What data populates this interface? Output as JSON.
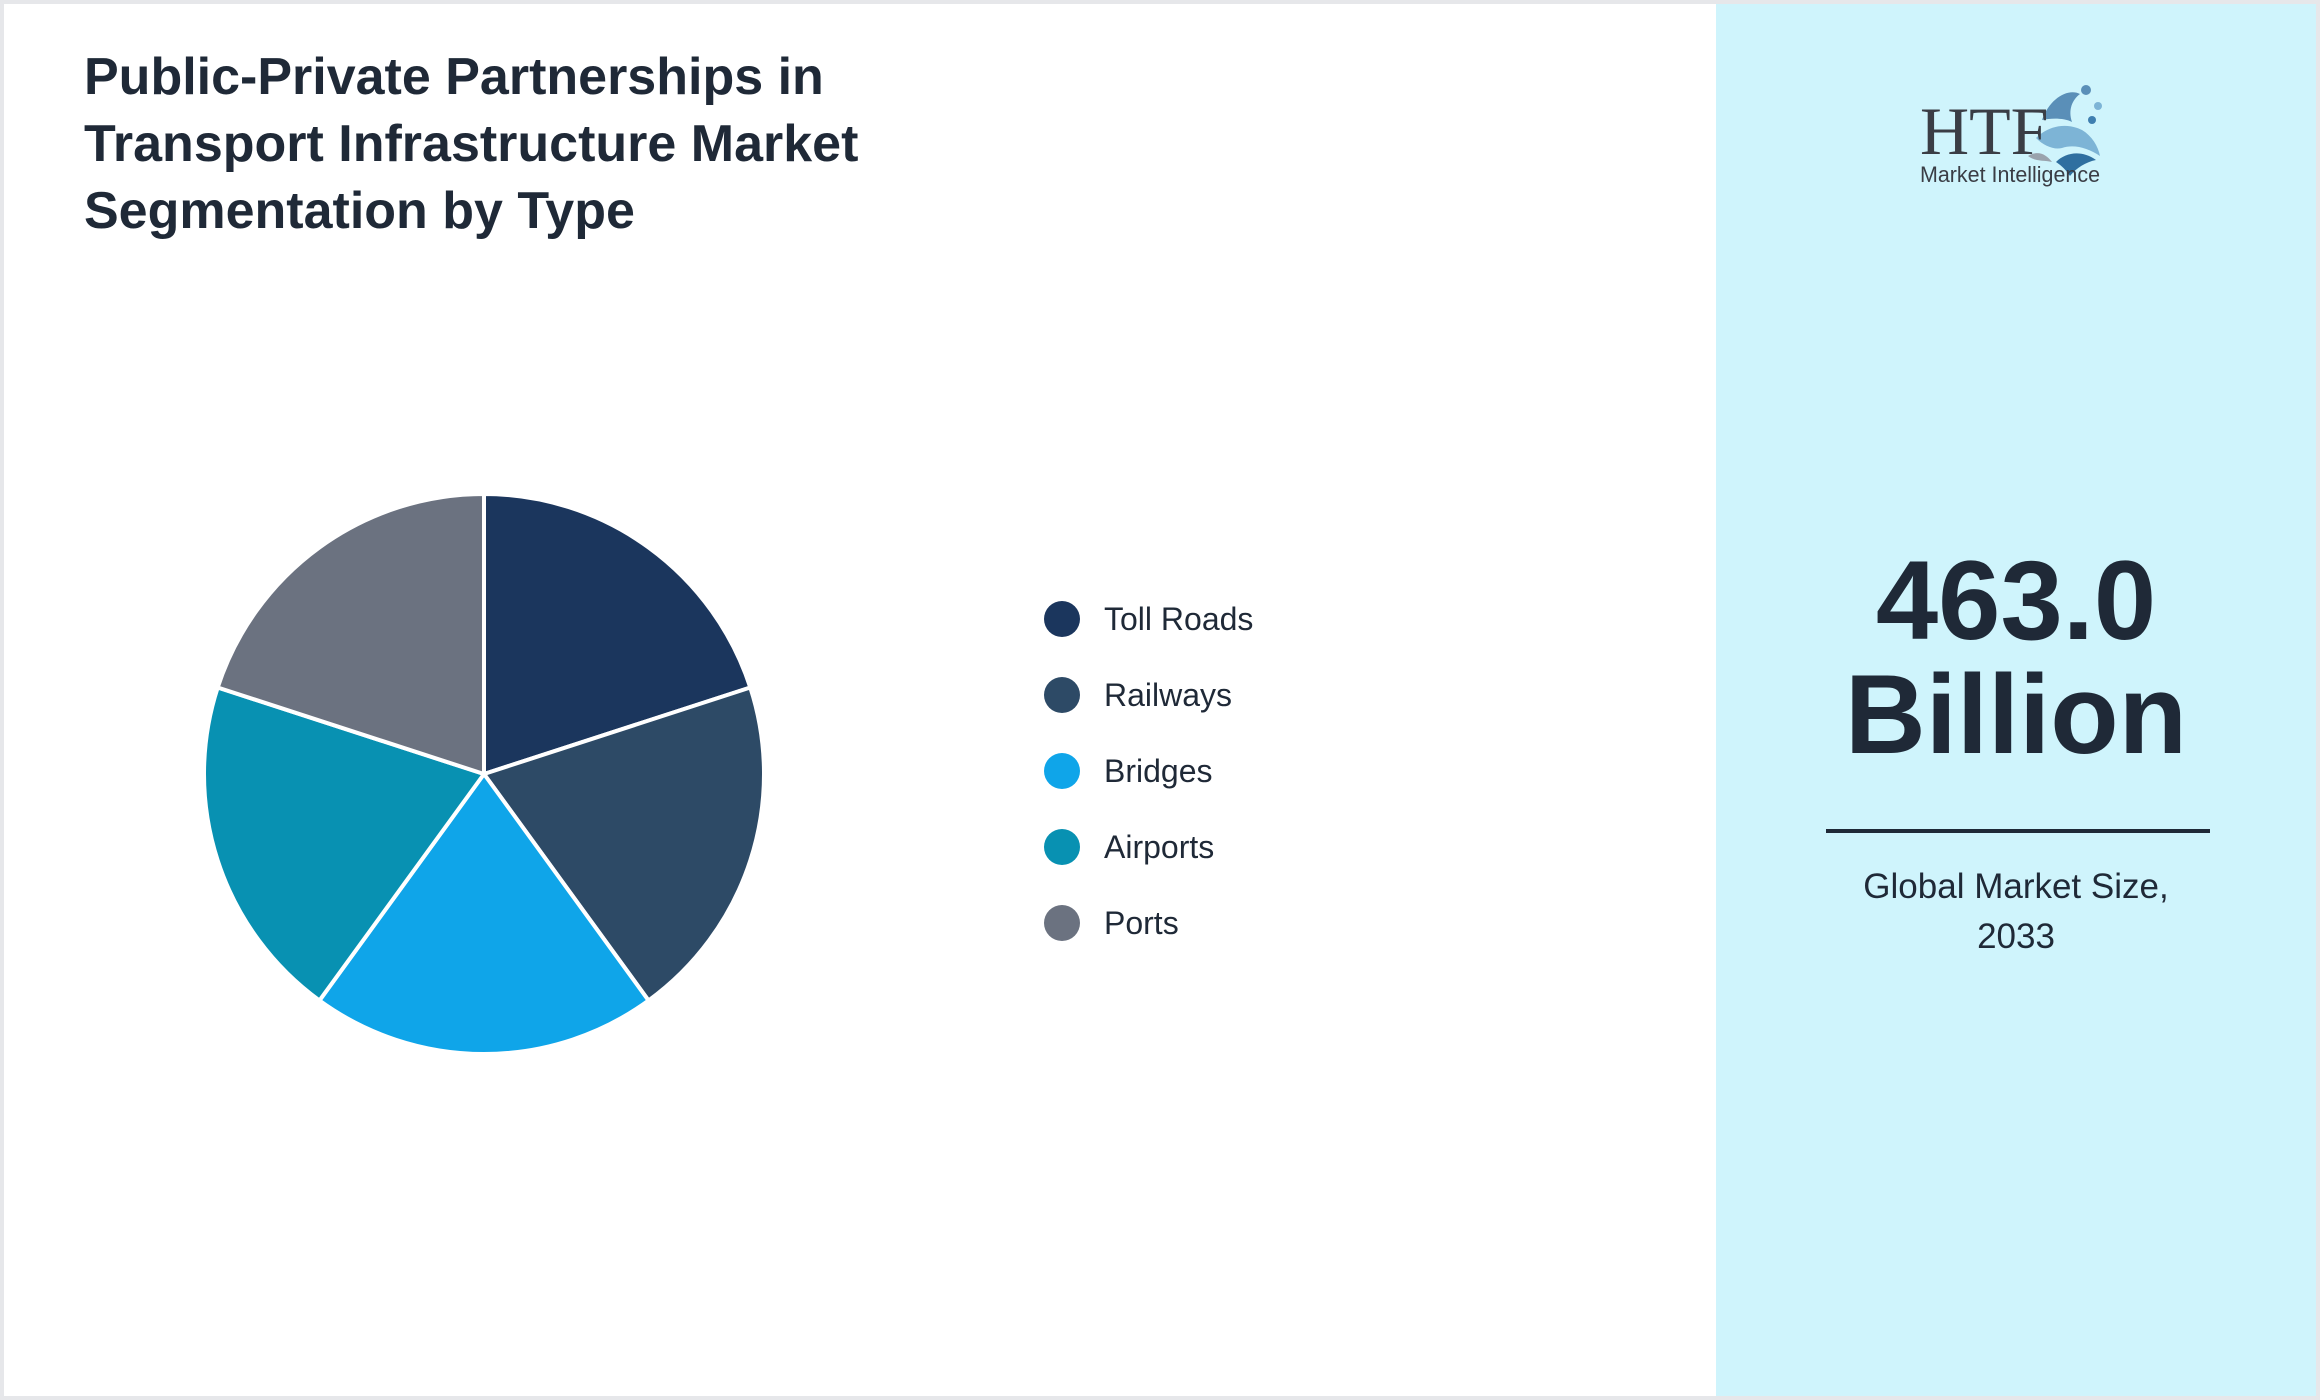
{
  "chart_data": {
    "type": "pie",
    "title": "Public-Private Partnerships in Transport Infrastructure Market Segmentation by Type",
    "title_lines": [
      "Public-Private Partnerships in",
      "Transport Infrastructure Market",
      "Segmentation by Type"
    ],
    "categories": [
      "Toll Roads",
      "Railways",
      "Bridges",
      "Airports",
      "Ports"
    ],
    "values": [
      20,
      20,
      20,
      20,
      20
    ],
    "colors": [
      "#1b365d",
      "#2d4a66",
      "#0fa5e9",
      "#0891b2",
      "#6b7280"
    ],
    "legend_position": "right",
    "start": "top, clockwise"
  },
  "logo": {
    "letters": "HTF",
    "tagline": "Market Intelligence",
    "colors": [
      "#3a3d45",
      "#5a8fb8",
      "#7db4d6"
    ]
  },
  "summary": {
    "value": "463.0",
    "unit": "Billion",
    "caption_line1": "Global Market Size,",
    "caption_line2": "2033"
  },
  "theme": {
    "text_color": "#1f2937",
    "side_panel_color": "#cff4fc",
    "slice_border": "#ffffff"
  }
}
